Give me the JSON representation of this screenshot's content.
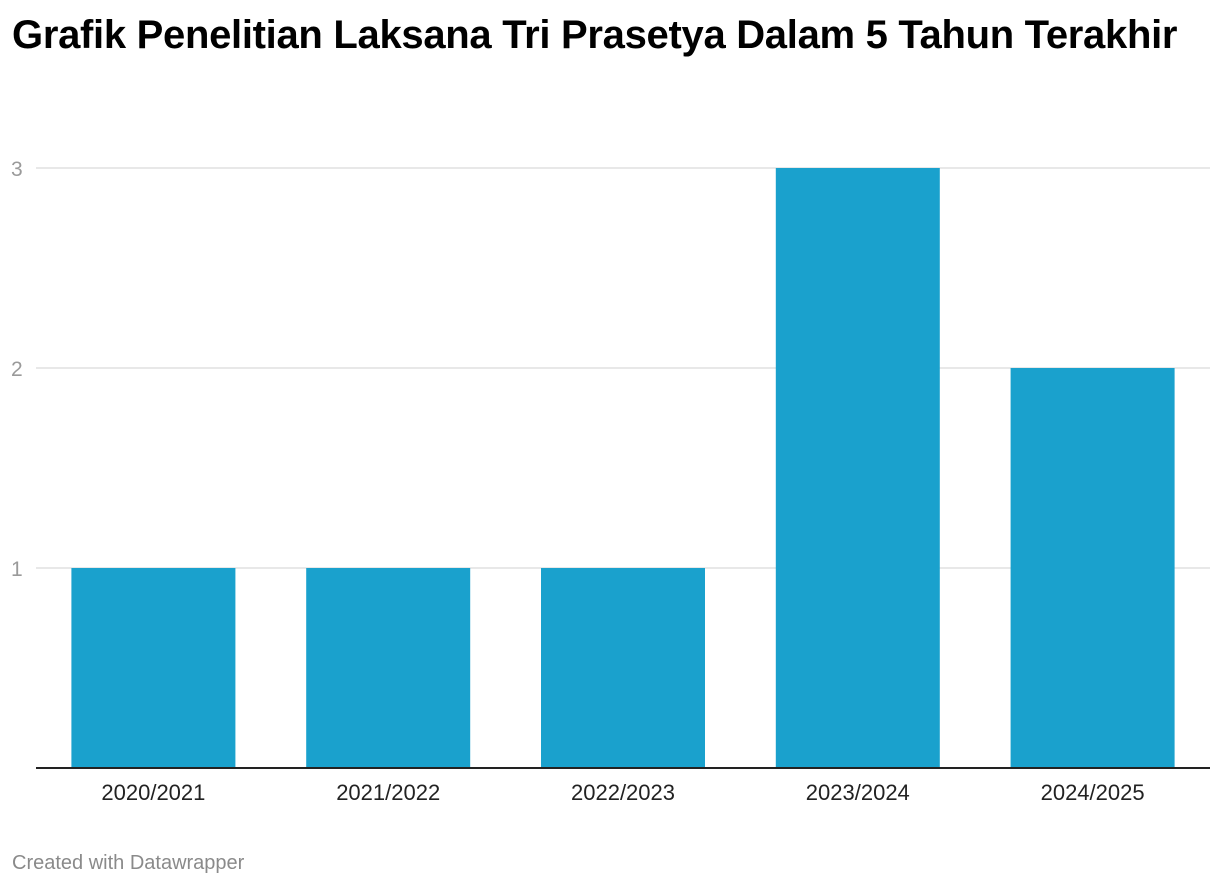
{
  "chart_data": {
    "type": "bar",
    "title": "Grafik Penelitian Laksana Tri Prasetya Dalam 5 Tahun Terakhir",
    "categories": [
      "2020/2021",
      "2021/2022",
      "2022/2023",
      "2023/2024",
      "2024/2025"
    ],
    "values": [
      1,
      1,
      1,
      3,
      2
    ],
    "xlabel": "",
    "ylabel": "",
    "ylim": [
      0,
      3
    ],
    "yticks": [
      1,
      2,
      3
    ],
    "grid": true,
    "bar_color": "#1aa1cd",
    "grid_color": "#e0e0e0",
    "axis_color": "#222222"
  },
  "footer": {
    "credit": "Created with Datawrapper"
  }
}
